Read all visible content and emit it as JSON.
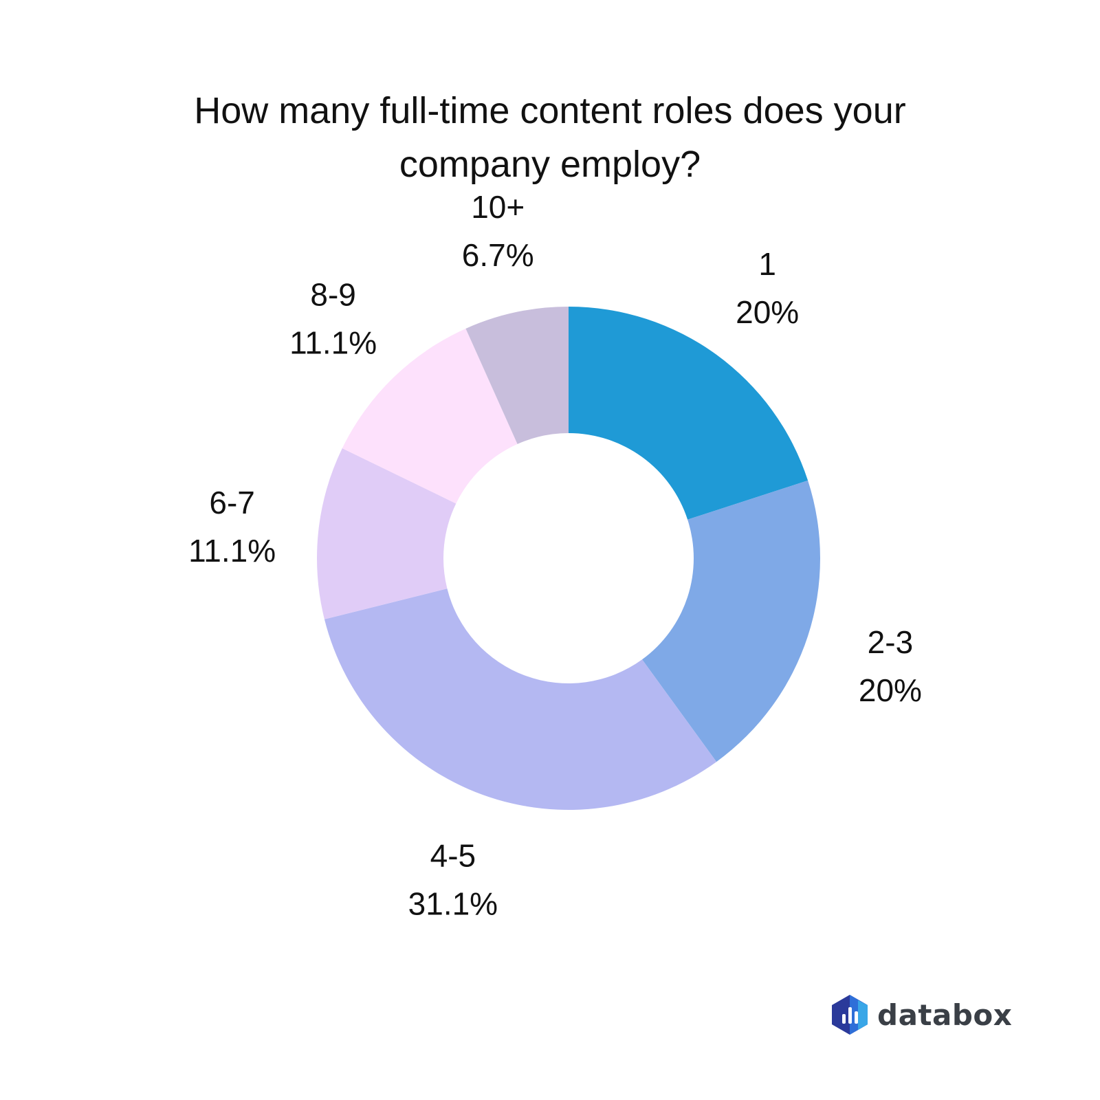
{
  "chart_data": {
    "type": "pie",
    "title": "How many full-time content roles does your company employ?",
    "donut": true,
    "start_angle_deg": 0,
    "direction": "clockwise",
    "slices": [
      {
        "label": "1",
        "value": 20,
        "display": "20%",
        "color": "#1f9ad6"
      },
      {
        "label": "2-3",
        "value": 20,
        "display": "20%",
        "color": "#7fa9e7"
      },
      {
        "label": "4-5",
        "value": 31.1,
        "display": "31.1%",
        "color": "#b4b8f2"
      },
      {
        "label": "6-7",
        "value": 11.1,
        "display": "11.1%",
        "color": "#e0ccf7"
      },
      {
        "label": "8-9",
        "value": 11.1,
        "display": "11.1%",
        "color": "#fde1fc"
      },
      {
        "label": "10+",
        "value": 6.7,
        "display": "6.7%",
        "color": "#c8bedc"
      }
    ],
    "legend": "none"
  },
  "logo": {
    "text": "databox",
    "icon": "databox-hexagon-bars-icon",
    "colors": {
      "dark": "#2b3a9a",
      "mid": "#2f6fd8",
      "light": "#3fc3f0"
    }
  }
}
